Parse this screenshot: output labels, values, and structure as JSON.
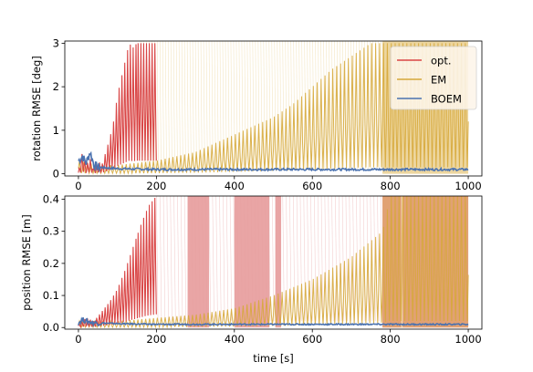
{
  "chart_data": [
    {
      "type": "line",
      "xlabel": "",
      "ylabel": "rotation RMSE [deg]",
      "xlim": [
        -35,
        1035
      ],
      "ylim": [
        -0.05,
        3.05
      ],
      "xticks": [
        0,
        200,
        400,
        600,
        800,
        1000
      ],
      "yticks": [
        0,
        1,
        2,
        3
      ],
      "xtick_labels": [
        "0",
        "200",
        "400",
        "600",
        "800",
        "1000"
      ],
      "ytick_labels": [
        "0",
        "1",
        "2",
        "3"
      ],
      "grid": false,
      "legend": {
        "position": "top-right",
        "entries": [
          "opt.",
          "EM",
          "BOEM"
        ]
      },
      "colors": {
        "opt.": "#d94545",
        "EM": "#d6a83a",
        "BOEM": "#4a72b0",
        "opt_band": "#e8a0a0",
        "em_band": "#ecd49a"
      },
      "series": [
        {
          "name": "opt.",
          "x": [
            0,
            10,
            20,
            30,
            40,
            50,
            60,
            70,
            80,
            90,
            100,
            110,
            120,
            130,
            140,
            150,
            160,
            170,
            180,
            190,
            200
          ],
          "y": [
            0.05,
            0.5,
            0.2,
            0.35,
            0.12,
            0.3,
            0.2,
            0.5,
            0.8,
            1.2,
            1.8,
            2.2,
            2.6,
            3.0,
            2.9,
            3.0,
            3.0,
            3.0,
            3.0,
            3.0,
            3.0
          ]
        },
        {
          "name": "EM",
          "x": [
            0,
            50,
            100,
            150,
            200,
            250,
            300,
            350,
            400,
            450,
            500,
            550,
            600,
            650,
            700,
            750,
            780,
            800,
            1000
          ],
          "y": [
            0.3,
            0.2,
            0.2,
            0.25,
            0.3,
            0.4,
            0.5,
            0.7,
            0.9,
            1.1,
            1.3,
            1.6,
            2.0,
            2.4,
            2.7,
            3.0,
            3.0,
            3.0,
            3.0
          ]
        },
        {
          "name": "BOEM",
          "x": [
            0,
            10,
            20,
            30,
            40,
            50,
            100,
            200,
            400,
            600,
            800,
            1000
          ],
          "y": [
            0.3,
            0.4,
            0.25,
            0.5,
            0.2,
            0.15,
            0.12,
            0.1,
            0.1,
            0.1,
            0.1,
            0.1
          ]
        }
      ]
    },
    {
      "type": "line",
      "xlabel": "time [s]",
      "ylabel": "position RMSE [m]",
      "xlim": [
        -35,
        1035
      ],
      "ylim": [
        -0.005,
        0.41
      ],
      "xticks": [
        0,
        200,
        400,
        600,
        800,
        1000
      ],
      "yticks": [
        0.0,
        0.1,
        0.2,
        0.3,
        0.4
      ],
      "xtick_labels": [
        "0",
        "200",
        "400",
        "600",
        "800",
        "1000"
      ],
      "ytick_labels": [
        "0.0",
        "0.1",
        "0.2",
        "0.3",
        "0.4"
      ],
      "grid": false,
      "legend": null,
      "colors": {
        "opt.": "#d94545",
        "EM": "#d6a83a",
        "BOEM": "#4a72b0",
        "opt_band": "#e8a0a0",
        "em_band": "#e0a070"
      },
      "series": [
        {
          "name": "opt.",
          "x": [
            0,
            20,
            40,
            60,
            80,
            100,
            120,
            140,
            160,
            180,
            200
          ],
          "y": [
            0.01,
            0.03,
            0.02,
            0.05,
            0.08,
            0.12,
            0.18,
            0.25,
            0.32,
            0.38,
            0.41
          ]
        },
        {
          "name": "EM",
          "x": [
            0,
            100,
            200,
            300,
            400,
            500,
            600,
            700,
            780,
            800,
            1000
          ],
          "y": [
            0.02,
            0.02,
            0.03,
            0.04,
            0.06,
            0.1,
            0.15,
            0.22,
            0.3,
            0.41,
            0.41
          ]
        },
        {
          "name": "BOEM",
          "x": [
            0,
            10,
            20,
            40,
            100,
            200,
            400,
            600,
            800,
            1000
          ],
          "y": [
            0.015,
            0.025,
            0.02,
            0.015,
            0.012,
            0.01,
            0.01,
            0.01,
            0.01,
            0.01
          ]
        }
      ]
    }
  ]
}
